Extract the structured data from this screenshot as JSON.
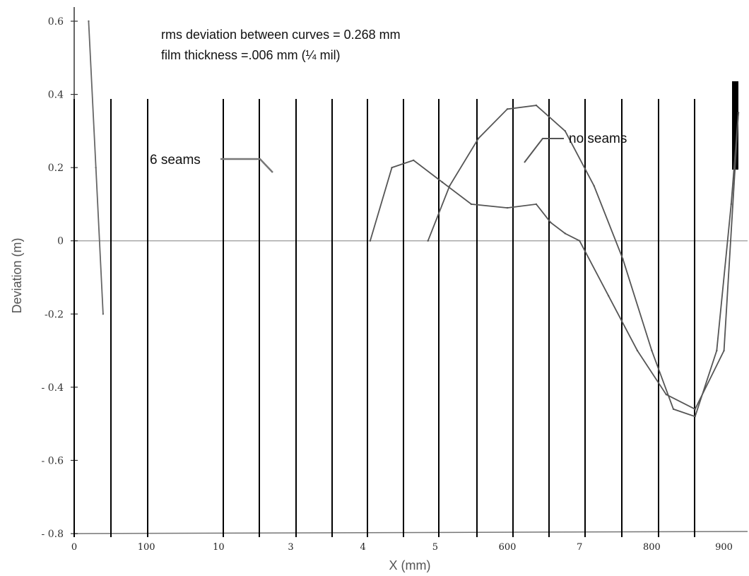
{
  "chart_data": {
    "type": "line",
    "title": "",
    "annotations": [
      "rms deviation between curves = 0.268 mm",
      "film  thickness  =.006 mm (¼ mil)"
    ],
    "xlabel": "X (mm)",
    "ylabel": "Deviation    (m)",
    "xlim": [
      0,
      920
    ],
    "ylim": [
      -0.8,
      0.6
    ],
    "yticks": [
      "0.6",
      "0.4",
      "0.2",
      "0",
      "-0.2",
      "- 0.4",
      "- 0.6",
      "- 0.8"
    ],
    "xticks": [
      "0",
      "100",
      "10",
      "3",
      "4",
      "5",
      "600",
      "7",
      "800",
      "900"
    ],
    "grid": false,
    "series": [
      {
        "name": "6 seams",
        "color": "#555555",
        "x": [
          410,
          440,
          470,
          510,
          550,
          600,
          640,
          660,
          680,
          700,
          740,
          780,
          820,
          860,
          900,
          920
        ],
        "y": [
          0.0,
          0.2,
          0.22,
          0.16,
          0.1,
          0.09,
          0.1,
          0.05,
          0.02,
          0.0,
          -0.15,
          -0.3,
          -0.42,
          -0.46,
          -0.3,
          0.35
        ]
      },
      {
        "name": "no seams",
        "color": "#555555",
        "x": [
          490,
          520,
          560,
          600,
          640,
          680,
          720,
          760,
          800,
          830,
          860,
          890,
          910,
          920
        ],
        "y": [
          0.0,
          0.15,
          0.28,
          0.36,
          0.37,
          0.3,
          0.15,
          -0.05,
          -0.3,
          -0.46,
          -0.48,
          -0.3,
          0.1,
          0.35
        ]
      },
      {
        "name": "",
        "color": "#666666",
        "x": [
          20,
          30,
          40
        ],
        "y": [
          0.6,
          0.2,
          -0.2
        ]
      }
    ],
    "series_labels": [
      "6 seams",
      "no seams"
    ]
  }
}
